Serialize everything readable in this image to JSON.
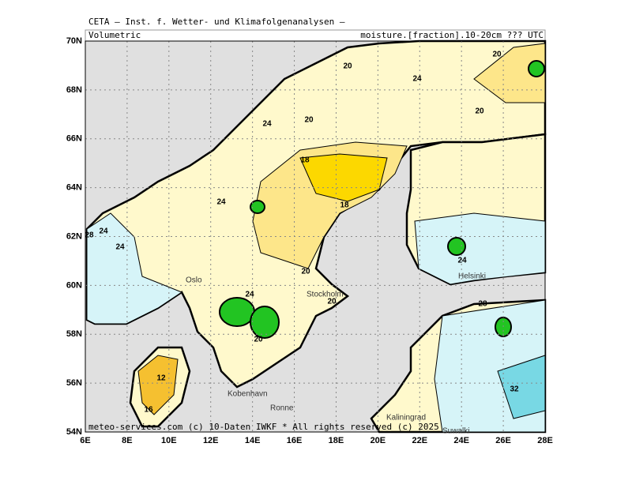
{
  "header": {
    "title": "CETA – Inst. f. Wetter- und Klimafolgenanalysen –",
    "left": "Volumetric",
    "right": "moisture.[fraction].10-20cm ??? UTC"
  },
  "axes": {
    "lat": [
      "70N",
      "68N",
      "66N",
      "64N",
      "62N",
      "60N",
      "58N",
      "56N",
      "54N"
    ],
    "lon": [
      "6E",
      "8E",
      "10E",
      "12E",
      "14E",
      "16E",
      "18E",
      "20E",
      "22E",
      "24E",
      "26E",
      "28E"
    ]
  },
  "contour_labels": [
    "20",
    "24",
    "20",
    "20",
    "24",
    "20",
    "18",
    "18",
    "24",
    "24",
    "28",
    "24",
    "24",
    "20",
    "20",
    "24",
    "28",
    "20",
    "12",
    "16",
    "32"
  ],
  "places": [
    "Oslo",
    "Stockholm",
    "Helsinki",
    "Kobenhavn",
    "Ronne",
    "Kaliningrad",
    "Suwalki"
  ],
  "footer": "meteo-services.com (c) 10-Daten IWKF * All rights reserved (c) 2025"
}
